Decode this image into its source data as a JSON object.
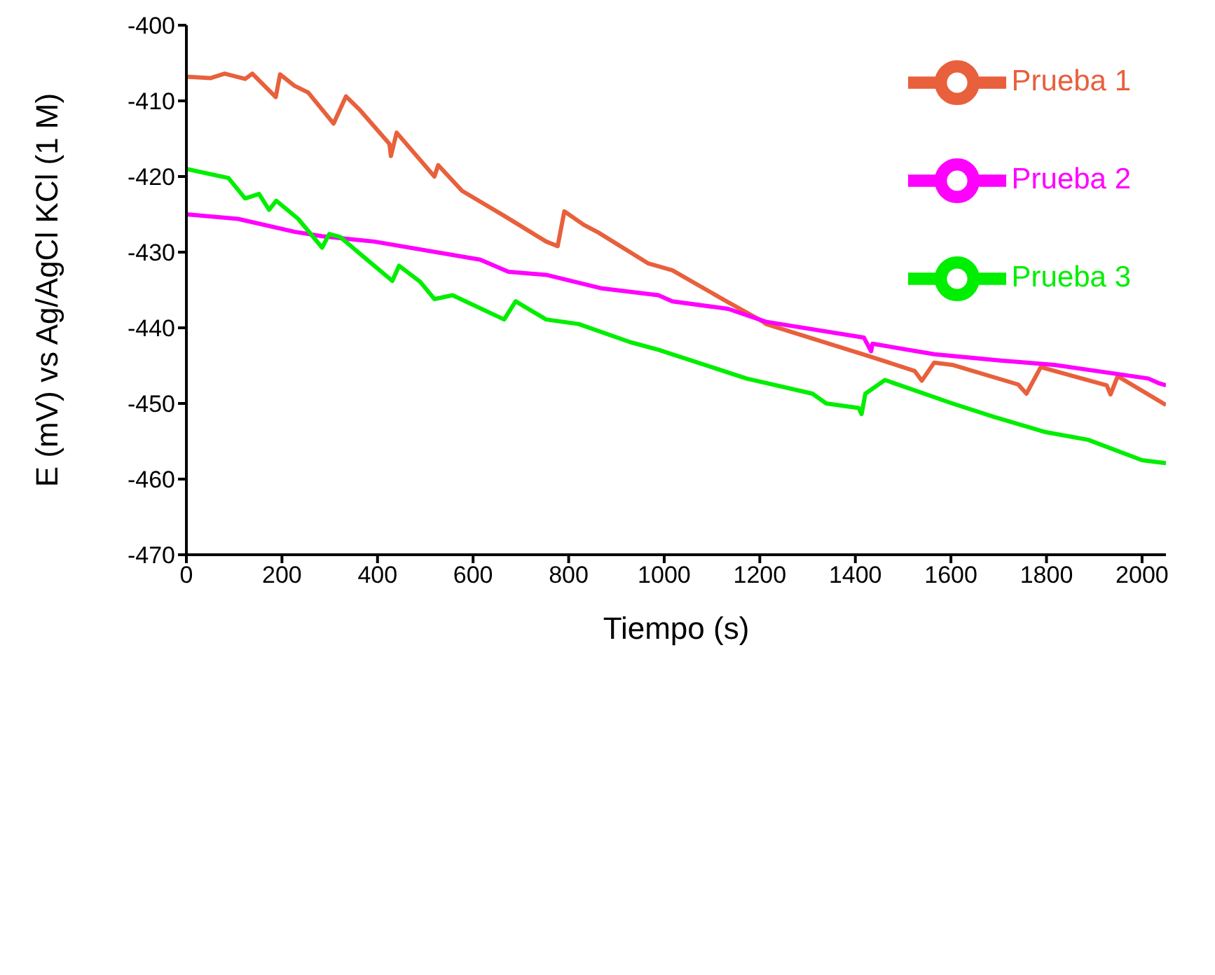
{
  "chart_data": {
    "type": "line",
    "xlabel": "Tiempo (s)",
    "ylabel": "E (mV) vs Ag/AgCl KCl (1 M)",
    "xlim": [
      0,
      2050
    ],
    "xticks": [
      0,
      200,
      400,
      600,
      800,
      1000,
      1200,
      1400,
      1600,
      1800,
      2000
    ],
    "ylim": [
      -470,
      -400
    ],
    "yticks": [
      -470,
      -460,
      -450,
      -440,
      -430,
      -420,
      -410,
      -400
    ],
    "grid": false,
    "legend": "top right",
    "marker": "none",
    "line_style": "solid",
    "series": [
      {
        "name": "Prueba 1",
        "color": "#e8603c",
        "x": [
          0,
          50,
          80,
          123,
          138,
          187,
          196,
          226,
          255,
          308,
          334,
          363,
          425,
          428,
          440,
          519,
          527,
          577,
          665,
          753,
          777,
          791,
          832,
          862,
          967,
          1017,
          1125,
          1207,
          1213,
          1436,
          1524,
          1539,
          1565,
          1603,
          1741,
          1758,
          1788,
          1817,
          1926,
          1934,
          1949,
          2050
        ],
        "values": [
          -406.8,
          -407.0,
          -406.4,
          -407.1,
          -406.4,
          -409.5,
          -406.5,
          -408.0,
          -408.9,
          -413.0,
          -409.4,
          -411.2,
          -415.7,
          -417.3,
          -414.2,
          -420.0,
          -418.5,
          -421.9,
          -425.2,
          -428.6,
          -429.2,
          -424.6,
          -426.4,
          -427.4,
          -431.5,
          -432.4,
          -436.3,
          -439.2,
          -439.5,
          -443.9,
          -445.7,
          -447.0,
          -444.6,
          -444.9,
          -447.5,
          -448.7,
          -445.2,
          -445.7,
          -447.6,
          -448.8,
          -446.4,
          -450.2
        ]
      },
      {
        "name": "Prueba 2",
        "color": "#ff00ff",
        "x": [
          0,
          108,
          226,
          284,
          393,
          615,
          674,
          753,
          870,
          988,
          1017,
          1134,
          1213,
          1418,
          1433,
          1436,
          1565,
          1700,
          1817,
          2013,
          2034,
          2050
        ],
        "values": [
          -425.0,
          -425.6,
          -427.3,
          -427.9,
          -428.6,
          -431.0,
          -432.6,
          -433.0,
          -434.8,
          -435.7,
          -436.5,
          -437.5,
          -439.2,
          -441.3,
          -443.1,
          -442.1,
          -443.5,
          -444.3,
          -444.9,
          -446.7,
          -447.3,
          -447.6
        ]
      },
      {
        "name": "Prueba 3",
        "color": "#00ee00",
        "x": [
          0,
          88,
          123,
          152,
          173,
          188,
          234,
          284,
          299,
          322,
          363,
          431,
          445,
          489,
          519,
          557,
          665,
          689,
          753,
          821,
          929,
          988,
          1017,
          1172,
          1310,
          1339,
          1407,
          1413,
          1421,
          1462,
          1603,
          1691,
          1799,
          1887,
          2000,
          2050
        ],
        "values": [
          -419.0,
          -420.2,
          -422.9,
          -422.3,
          -424.4,
          -423.2,
          -425.6,
          -429.4,
          -427.6,
          -428.0,
          -430.2,
          -433.8,
          -431.8,
          -433.9,
          -436.2,
          -435.7,
          -438.9,
          -436.5,
          -438.9,
          -439.5,
          -441.9,
          -442.9,
          -443.5,
          -446.7,
          -448.7,
          -450.0,
          -450.6,
          -451.4,
          -448.7,
          -446.9,
          -450.0,
          -451.8,
          -453.8,
          -454.8,
          -457.5,
          -457.9
        ]
      }
    ]
  }
}
